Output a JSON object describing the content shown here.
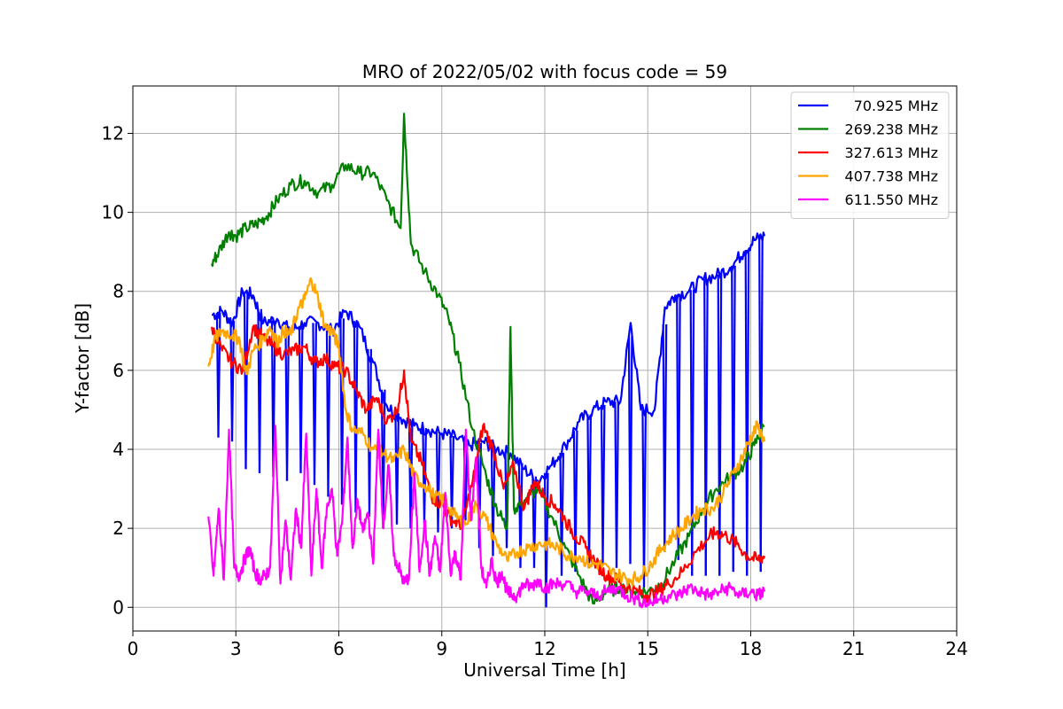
{
  "chart_data": {
    "type": "line",
    "title": "MRO of 2022/05/02 with focus code = 59",
    "xlabel": "Universal Time [h]",
    "ylabel": "Y-factor [dB]",
    "xlim": [
      0,
      24
    ],
    "ylim": [
      -0.6,
      13.2
    ],
    "xticks": [
      0,
      3,
      6,
      9,
      12,
      15,
      18,
      21,
      24
    ],
    "yticks": [
      0,
      2,
      4,
      6,
      8,
      10,
      12
    ],
    "grid": true,
    "legend_position": "top-right",
    "series": [
      {
        "name": "70.925 MHz",
        "color": "#0000ff",
        "x": [
          2.3,
          2.6,
          2.9,
          3.2,
          3.5,
          3.8,
          4.2,
          4.6,
          5.0,
          5.4,
          5.8,
          6.2,
          6.6,
          7.0,
          7.4,
          7.8,
          8.2,
          8.6,
          9.0,
          9.4,
          9.8,
          10.2,
          10.6,
          11.0,
          11.4,
          11.8,
          12.2,
          12.6,
          13.0,
          13.4,
          13.8,
          14.2,
          14.5,
          14.8,
          15.2,
          15.5,
          15.8,
          16.2,
          16.6,
          17.0,
          17.4,
          17.8,
          18.1,
          18.4
        ],
        "y": [
          7.4,
          7.5,
          7.2,
          8.0,
          7.9,
          7.2,
          7.3,
          7.0,
          7.2,
          7.2,
          7.0,
          7.5,
          7.1,
          6.2,
          5.1,
          4.8,
          4.6,
          4.5,
          4.4,
          4.3,
          4.1,
          4.2,
          4.0,
          3.9,
          3.5,
          3.2,
          3.6,
          4.1,
          4.7,
          5.0,
          5.2,
          5.2,
          7.2,
          5.0,
          5.0,
          7.6,
          7.9,
          8.0,
          8.3,
          8.4,
          8.6,
          9.0,
          9.3,
          9.4
        ],
        "dips": [
          [
            2.45,
            4.3
          ],
          [
            2.85,
            4.2
          ],
          [
            3.25,
            3.5
          ],
          [
            3.65,
            3.4
          ],
          [
            4.05,
            3.3
          ],
          [
            4.45,
            3.2
          ],
          [
            4.85,
            3.4
          ],
          [
            5.25,
            3.1
          ],
          [
            5.65,
            2.8
          ],
          [
            6.05,
            2.6
          ],
          [
            6.45,
            2.4
          ],
          [
            6.85,
            2.3
          ],
          [
            7.25,
            2.0
          ],
          [
            7.65,
            2.1
          ],
          [
            8.05,
            2.0
          ],
          [
            8.45,
            2.1
          ],
          [
            8.85,
            1.9
          ],
          [
            9.25,
            2.0
          ],
          [
            9.65,
            2.2
          ],
          [
            10.05,
            1.5
          ],
          [
            10.45,
            1.3
          ],
          [
            10.85,
            1.5
          ],
          [
            11.25,
            1.0
          ],
          [
            11.65,
            1.0
          ],
          [
            12.0,
            0.0
          ],
          [
            12.45,
            0.8
          ],
          [
            12.85,
            0.9
          ],
          [
            13.25,
            1.0
          ],
          [
            13.65,
            1.1
          ],
          [
            14.05,
            1.0
          ],
          [
            14.45,
            1.1
          ],
          [
            14.85,
            0.5
          ],
          [
            15.45,
            1.4
          ],
          [
            15.85,
            1.2
          ],
          [
            16.25,
            0.8
          ],
          [
            16.65,
            0.8
          ],
          [
            17.05,
            0.8
          ],
          [
            17.45,
            0.9
          ],
          [
            17.85,
            0.8
          ],
          [
            18.25,
            0.9
          ]
        ]
      },
      {
        "name": "269.238 MHz",
        "color": "#008000",
        "x": [
          2.3,
          2.5,
          2.8,
          3.0,
          3.3,
          3.6,
          3.9,
          4.2,
          4.6,
          5.0,
          5.4,
          5.8,
          6.2,
          6.6,
          7.0,
          7.4,
          7.8,
          7.9,
          8.1,
          8.5,
          8.9,
          9.2,
          9.5,
          9.9,
          10.3,
          10.6,
          10.9,
          11.0,
          11.1,
          11.4,
          11.8,
          12.2,
          12.6,
          13.0,
          13.4,
          13.8,
          14.2,
          14.6,
          15.0,
          15.4,
          15.8,
          16.2,
          16.6,
          17.0,
          17.4,
          17.8,
          18.1,
          18.4
        ],
        "y": [
          8.7,
          9.0,
          9.5,
          9.4,
          9.6,
          9.7,
          9.9,
          10.3,
          10.7,
          10.8,
          10.5,
          10.7,
          11.2,
          11.0,
          11.0,
          10.3,
          9.6,
          12.5,
          9.2,
          8.5,
          7.9,
          7.3,
          6.2,
          4.5,
          3.3,
          2.5,
          2.0,
          7.1,
          2.5,
          2.7,
          3.0,
          2.3,
          1.5,
          0.8,
          0.1,
          0.4,
          0.5,
          0.4,
          0.4,
          0.6,
          1.2,
          1.8,
          2.5,
          3.0,
          3.3,
          3.6,
          4.1,
          4.6
        ]
      },
      {
        "name": "327.613 MHz",
        "color": "#ff0000",
        "x": [
          2.3,
          2.6,
          2.9,
          3.2,
          3.5,
          3.8,
          4.1,
          4.4,
          4.7,
          5.0,
          5.3,
          5.6,
          5.9,
          6.2,
          6.5,
          6.8,
          7.1,
          7.4,
          7.7,
          7.9,
          8.1,
          8.4,
          8.7,
          9.0,
          9.3,
          9.6,
          9.9,
          10.2,
          10.5,
          10.8,
          11.1,
          11.4,
          11.7,
          12.0,
          12.3,
          12.6,
          12.9,
          13.2,
          13.5,
          13.8,
          14.1,
          14.4,
          14.7,
          15.0,
          15.3,
          15.6,
          16.0,
          16.4,
          16.8,
          17.0,
          17.3,
          17.6,
          17.9,
          18.2,
          18.4
        ],
        "y": [
          7.1,
          6.5,
          6.2,
          6.0,
          7.1,
          6.8,
          6.6,
          6.4,
          6.5,
          6.6,
          6.2,
          6.3,
          6.1,
          6.0,
          5.5,
          5.0,
          5.3,
          4.7,
          5.0,
          6.0,
          4.2,
          3.7,
          2.8,
          2.6,
          2.2,
          2.1,
          3.2,
          4.6,
          4.0,
          3.0,
          3.6,
          2.5,
          3.2,
          2.8,
          2.6,
          2.2,
          1.8,
          1.5,
          1.1,
          0.8,
          0.7,
          0.5,
          0.4,
          0.3,
          0.4,
          0.6,
          0.9,
          1.4,
          1.8,
          1.9,
          1.8,
          1.6,
          1.3,
          1.2,
          1.3
        ]
      },
      {
        "name": "407.738 MHz",
        "color": "#ffa500",
        "x": [
          2.2,
          2.4,
          2.6,
          2.9,
          3.1,
          3.3,
          3.5,
          3.8,
          4.0,
          4.2,
          4.4,
          4.6,
          4.8,
          5.0,
          5.2,
          5.4,
          5.6,
          5.8,
          6.0,
          6.2,
          6.4,
          6.7,
          7.0,
          7.3,
          7.6,
          7.9,
          8.2,
          8.5,
          8.8,
          9.1,
          9.4,
          9.7,
          10.0,
          10.3,
          10.6,
          10.9,
          11.2,
          11.5,
          11.8,
          12.1,
          12.4,
          12.7,
          13.0,
          13.3,
          13.6,
          13.9,
          14.2,
          14.5,
          14.8,
          15.1,
          15.4,
          15.7,
          16.0,
          16.3,
          16.6,
          16.9,
          17.2,
          17.5,
          17.8,
          18.0,
          18.2,
          18.4
        ],
        "y": [
          6.1,
          6.8,
          7.0,
          6.9,
          6.8,
          5.9,
          6.5,
          6.8,
          7.1,
          6.7,
          7.0,
          6.9,
          7.5,
          7.8,
          8.3,
          7.8,
          7.1,
          7.0,
          6.6,
          5.0,
          4.5,
          4.4,
          4.0,
          3.9,
          3.7,
          4.0,
          3.3,
          3.1,
          2.8,
          2.7,
          2.3,
          2.1,
          2.6,
          2.2,
          1.6,
          1.2,
          1.4,
          1.5,
          1.6,
          1.6,
          1.5,
          1.3,
          1.3,
          1.1,
          1.1,
          0.9,
          0.8,
          0.7,
          0.8,
          1.1,
          1.5,
          1.8,
          2.0,
          2.3,
          2.5,
          2.5,
          2.9,
          3.4,
          3.9,
          4.3,
          4.6,
          4.2
        ]
      },
      {
        "name": "611.550 MHz",
        "color": "#ff00ff",
        "x": [
          2.2,
          2.35,
          2.5,
          2.65,
          2.8,
          2.95,
          3.1,
          3.25,
          3.4,
          3.55,
          3.7,
          3.85,
          4.0,
          4.15,
          4.3,
          4.45,
          4.6,
          4.75,
          4.9,
          5.05,
          5.2,
          5.35,
          5.5,
          5.65,
          5.8,
          5.95,
          6.1,
          6.25,
          6.4,
          6.55,
          6.7,
          6.85,
          7.0,
          7.15,
          7.3,
          7.45,
          7.6,
          7.75,
          7.9,
          8.05,
          8.2,
          8.35,
          8.5,
          8.65,
          8.8,
          8.95,
          9.1,
          9.25,
          9.4,
          9.55,
          9.7,
          9.85,
          10.0,
          10.15,
          10.3,
          10.45,
          10.6,
          10.75,
          10.9,
          11.05,
          11.2,
          11.4,
          11.6,
          11.8,
          12.0,
          12.3,
          12.6,
          12.9,
          13.2,
          13.5,
          13.8,
          14.1,
          14.4,
          14.7,
          15.0,
          15.3,
          15.6,
          15.9,
          16.2,
          16.5,
          16.8,
          17.1,
          17.4,
          17.7,
          18.0,
          18.2,
          18.4
        ],
        "y": [
          2.3,
          0.8,
          2.5,
          0.7,
          4.5,
          1.0,
          0.8,
          1.2,
          1.5,
          0.9,
          0.7,
          0.8,
          1.0,
          4.6,
          0.6,
          2.2,
          0.7,
          2.5,
          1.5,
          4.4,
          0.8,
          3.0,
          1.0,
          2.5,
          3.0,
          1.3,
          2.2,
          4.3,
          1.5,
          2.7,
          1.9,
          2.4,
          1.1,
          4.5,
          2.0,
          3.6,
          1.3,
          1.0,
          0.6,
          0.8,
          3.4,
          0.9,
          2.2,
          0.8,
          1.8,
          0.9,
          2.9,
          0.9,
          1.4,
          0.7,
          4.5,
          2.2,
          3.8,
          1.0,
          0.5,
          1.2,
          0.6,
          0.9,
          0.4,
          0.3,
          0.3,
          0.6,
          0.5,
          0.7,
          0.5,
          0.6,
          0.6,
          0.4,
          0.4,
          0.3,
          0.4,
          0.5,
          0.3,
          0.2,
          0.1,
          0.2,
          0.3,
          0.3,
          0.5,
          0.4,
          0.3,
          0.4,
          0.5,
          0.3,
          0.4,
          0.3,
          0.4
        ]
      }
    ]
  }
}
